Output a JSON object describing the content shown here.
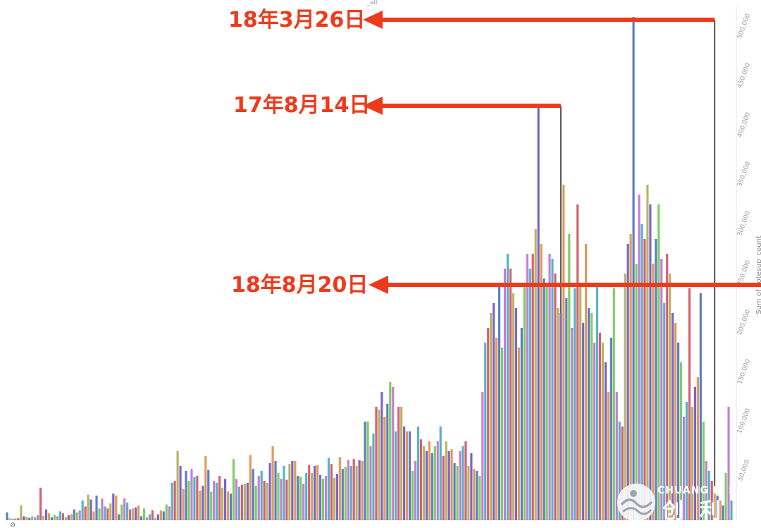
{
  "chart_data": {
    "type": "bar",
    "top_label": "_all",
    "ylabel": "Sum of votesup_count",
    "ylim": [
      0,
      520000
    ],
    "y_ticks": [
      "50,000",
      "100,000",
      "150,000",
      "200,000",
      "250,000",
      "300,000",
      "350,000",
      "400,000",
      "450,000",
      "500,000"
    ],
    "y_tick_values": [
      50000,
      100000,
      150000,
      200000,
      250000,
      300000,
      350000,
      400000,
      450000,
      500000
    ],
    "palette": [
      "#5b7fc4",
      "#7fce63",
      "#c77dd6",
      "#57b3c7",
      "#d95f6f",
      "#b9b463",
      "#7a66c9",
      "#e09b5a"
    ],
    "values": [
      8000,
      2000,
      1500,
      1800,
      2000,
      15000,
      4000,
      3500,
      2500,
      4000,
      3000,
      5000,
      33000,
      4500,
      11000,
      7000,
      3000,
      5500,
      4000,
      9000,
      7000,
      3500,
      5000,
      6000,
      11000,
      8000,
      10000,
      20000,
      14000,
      26000,
      21000,
      9000,
      25000,
      12000,
      22000,
      14000,
      12000,
      17000,
      27000,
      25000,
      6000,
      16000,
      22000,
      18000,
      11000,
      12000,
      13000,
      15000,
      4000,
      12000,
      3000,
      6000,
      10000,
      2500,
      6000,
      10000,
      9000,
      16000,
      14000,
      38000,
      40000,
      70000,
      55000,
      32000,
      50000,
      40000,
      52000,
      44000,
      45000,
      30000,
      35000,
      65000,
      51000,
      29000,
      40000,
      38000,
      45000,
      33000,
      42000,
      29000,
      27000,
      62000,
      42000,
      34000,
      36000,
      37000,
      38000,
      66000,
      52000,
      35000,
      45000,
      50000,
      40000,
      38000,
      58000,
      75000,
      60000,
      48000,
      42000,
      55000,
      41000,
      57000,
      60000,
      60000,
      45000,
      44000,
      37000,
      48000,
      56000,
      48000,
      55000,
      56000,
      46000,
      42000,
      45000,
      63000,
      57000,
      43000,
      47000,
      64000,
      52000,
      54000,
      61000,
      55000,
      62000,
      55000,
      61000,
      60000,
      100000,
      100000,
      75000,
      88000,
      115000,
      112000,
      130000,
      105000,
      118000,
      140000,
      135000,
      90000,
      115000,
      115000,
      95000,
      90000,
      90000,
      50000,
      60000,
      95000,
      82000,
      75000,
      70000,
      80000,
      68000,
      75000,
      80000,
      95000,
      65000,
      80000,
      70000,
      72000,
      58000,
      55000,
      70000,
      75000,
      80000,
      55000,
      68000,
      52000,
      50000,
      45000,
      130000,
      180000,
      195000,
      210000,
      220000,
      185000,
      240000,
      175000,
      255000,
      270000,
      255000,
      230000,
      215000,
      175000,
      195000,
      240000,
      270000,
      255000,
      270000,
      295000,
      420000,
      280000,
      245000,
      240000,
      270000,
      265000,
      250000,
      215000,
      210000,
      340000,
      225000,
      290000,
      195000,
      235000,
      320000,
      240000,
      200000,
      280000,
      215000,
      210000,
      180000,
      240000,
      190000,
      180000,
      160000,
      130000,
      185000,
      235000,
      130000,
      100000,
      95000,
      250000,
      280000,
      290000,
      510000,
      260000,
      330000,
      300000,
      285000,
      340000,
      320000,
      260000,
      285000,
      320000,
      265000,
      220000,
      270000,
      250000,
      210000,
      200000,
      180000,
      160000,
      105000,
      120000,
      235000,
      115000,
      135000,
      145000,
      230000,
      100000,
      60000,
      50000,
      40000,
      30000,
      25000,
      20000,
      15000,
      48000,
      115000,
      20000
    ]
  },
  "annotations": [
    {
      "text": "18年3月26日",
      "target_index": 253
    },
    {
      "text": "17年8月14日",
      "target_index": 198
    },
    {
      "text": "18年8月20日",
      "target_index": 276
    }
  ],
  "watermark": {
    "latin": "CHUANG LI SHU",
    "cjk": [
      "创",
      "利",
      "树"
    ]
  }
}
